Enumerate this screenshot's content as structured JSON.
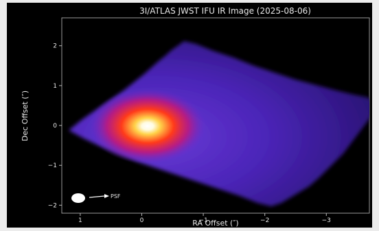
{
  "figure": {
    "title": "3I/ATLAS JWST IFU IR Image (2025-08-06)",
    "xlabel": "RA Offset (″)",
    "ylabel": "Dec Offset (″)",
    "xlim": [
      1.3,
      -3.7
    ],
    "ylim": [
      -2.2,
      2.7
    ],
    "xticks": [
      "1",
      "0",
      "−1",
      "−2",
      "−3"
    ],
    "xtick_values": [
      1,
      0,
      -1,
      -2,
      -3
    ],
    "yticks": [
      "−2",
      "−1",
      "0",
      "1",
      "2"
    ],
    "ytick_values": [
      -2,
      -1,
      0,
      1,
      2
    ],
    "psf_label": "PSF",
    "colormap": "inferno-like (black → purple → red → yellow → white)",
    "colors": {
      "background": "#000000",
      "text": "#e8e8e8",
      "field_low": "#2a0a6a",
      "field_mid": "#5a2cc8",
      "core": "#ffffff",
      "inner_glow": "#ffd24a",
      "outer_glow": "#ff3a1a"
    },
    "source_peak": {
      "x": 0.0,
      "y": 0.0
    },
    "psf_marker": {
      "x": 0.95,
      "y": -1.9
    }
  }
}
